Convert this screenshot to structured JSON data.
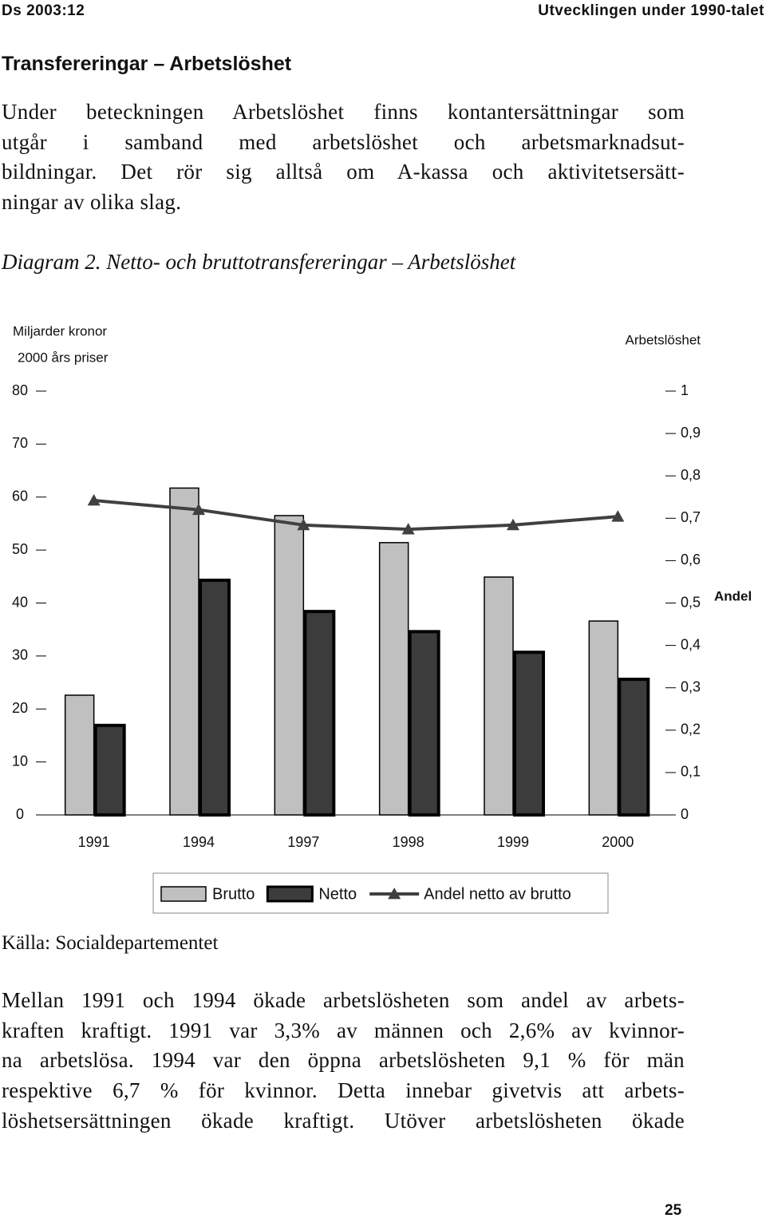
{
  "header": {
    "left": "Ds 2003:12",
    "right": "Utvecklingen under 1990-talet"
  },
  "heading": "Transfereringar – Arbetslöshet",
  "intro": {
    "lines": [
      "Under beteckningen Arbetslöshet finns kontantersättningar som",
      "utgår i samband med arbetslöshet och arbetsmarknadsut-",
      "bildningar. Det rör sig alltså om A-kassa och aktivitetsersätt-",
      "ningar av olika slag."
    ]
  },
  "caption": "Diagram 2. Netto- och bruttotransfereringar – Arbetslöshet",
  "chart_data": {
    "type": "bar",
    "y_label": [
      "Miljarder kronor",
      "2000 års priser"
    ],
    "y2_label": "Arbetslöshet",
    "y2_side_label": "Andel",
    "categories": [
      "1991",
      "1994",
      "1997",
      "1998",
      "1999",
      "2000"
    ],
    "series": [
      {
        "name": "Brutto",
        "color": "#c0c0c0",
        "values": [
          22.6,
          61.7,
          56.5,
          51.4,
          44.9,
          36.6
        ]
      },
      {
        "name": "Netto",
        "color": "#3c3c3c",
        "values": [
          16.9,
          44.3,
          38.4,
          34.6,
          30.7,
          25.6
        ]
      },
      {
        "name": "Andel netto av brutto",
        "type": "line",
        "axis": "y2",
        "color": "#404040",
        "values": [
          0.742,
          0.72,
          0.684,
          0.674,
          0.684,
          0.704
        ]
      }
    ],
    "ylim": [
      0,
      80
    ],
    "yticks": [
      0,
      10,
      20,
      30,
      40,
      50,
      60,
      70,
      80
    ],
    "y2lim": [
      0,
      1
    ],
    "y2ticks": [
      0,
      {
        "value": 0.1,
        "label": "0,1"
      },
      {
        "value": 0.2,
        "label": "0,2"
      },
      {
        "value": 0.3,
        "label": "0,3"
      },
      {
        "value": 0.4,
        "label": "0,4"
      },
      {
        "value": 0.5,
        "label": "0,5"
      },
      {
        "value": 0.6,
        "label": "0,6"
      },
      {
        "value": 0.7,
        "label": "0,7"
      },
      {
        "value": 0.8,
        "label": "0,8"
      },
      {
        "value": 0.9,
        "label": "0,9"
      },
      1
    ],
    "legend": "bottom",
    "grid": false
  },
  "source": "Källa: Socialdepartementet",
  "body": {
    "lines": [
      "Mellan 1991 och 1994 ökade arbetslösheten som andel av arbets-",
      "kraften kraftigt. 1991 var 3,3% av männen och 2,6% av kvinnor-",
      "na arbetslösa. 1994 var den öppna arbetslösheten 9,1 % för män",
      "respektive 6,7 % för kvinnor. Detta innebar givetvis att arbets-",
      "löshetsersättningen ökade kraftigt. Utöver arbetslösheten ökade"
    ]
  },
  "page_number": "25"
}
